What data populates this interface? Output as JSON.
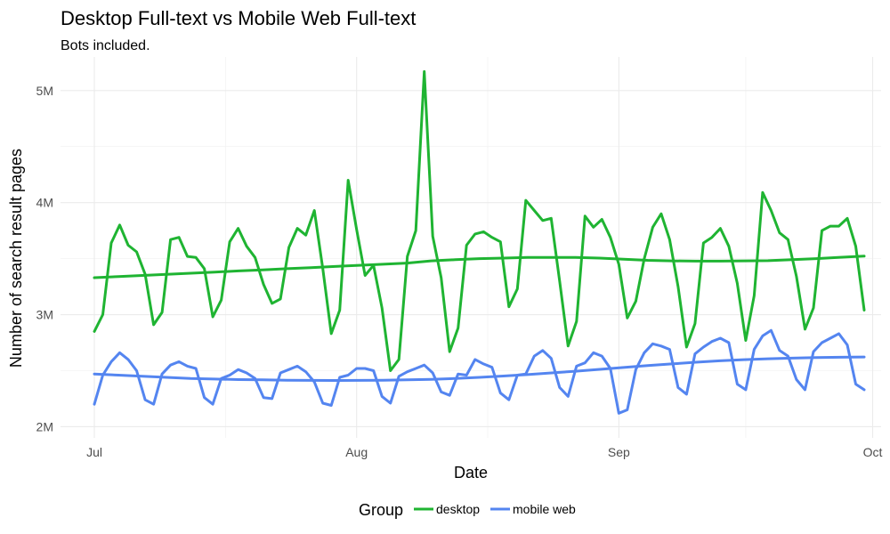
{
  "chart_data": {
    "type": "line",
    "title": "Desktop Full-text vs Mobile Web Full-text",
    "subtitle": "Bots included.",
    "xlabel": "Date",
    "ylabel": "Number of search result pages",
    "x_ticks": [
      {
        "date": "2016-07-01",
        "label": "Jul"
      },
      {
        "date": "2016-08-01",
        "label": "Aug"
      },
      {
        "date": "2016-09-01",
        "label": "Sep"
      },
      {
        "date": "2016-10-01",
        "label": "Oct"
      }
    ],
    "y_ticks": [
      {
        "value": 2000000,
        "label": "2M"
      },
      {
        "value": 3000000,
        "label": "3M"
      },
      {
        "value": 4000000,
        "label": "4M"
      },
      {
        "value": 5000000,
        "label": "5M"
      }
    ],
    "xlim": [
      "2016-06-27",
      "2016-10-02"
    ],
    "ylim": [
      1900000,
      5300000
    ],
    "grid": true,
    "legend": {
      "title": "Group",
      "position": "bottom"
    },
    "series": [
      {
        "name": "desktop",
        "color": "#1fb432",
        "start_date": "2016-07-01",
        "values": [
          2850000,
          3000000,
          3640000,
          3800000,
          3620000,
          3560000,
          3360000,
          2910000,
          3020000,
          3670000,
          3690000,
          3520000,
          3510000,
          3410000,
          2980000,
          3130000,
          3650000,
          3770000,
          3610000,
          3510000,
          3270000,
          3100000,
          3140000,
          3600000,
          3770000,
          3710000,
          3930000,
          3410000,
          2830000,
          3040000,
          4200000,
          3760000,
          3350000,
          3440000,
          3060000,
          2500000,
          2600000,
          3520000,
          3750000,
          5170000,
          3700000,
          3330000,
          2670000,
          2880000,
          3620000,
          3720000,
          3740000,
          3690000,
          3650000,
          3070000,
          3230000,
          4020000,
          3930000,
          3840000,
          3860000,
          3300000,
          2720000,
          2940000,
          3880000,
          3780000,
          3850000,
          3690000,
          3450000,
          2970000,
          3120000,
          3500000,
          3780000,
          3900000,
          3670000,
          3250000,
          2710000,
          2920000,
          3640000,
          3690000,
          3770000,
          3610000,
          3280000,
          2770000,
          3170000,
          4090000,
          3930000,
          3730000,
          3670000,
          3340000,
          2870000,
          3060000,
          3750000,
          3790000,
          3790000,
          3860000,
          3610000,
          3040000
        ],
        "trend": [
          3330000,
          3340000,
          3350000,
          3360000,
          3370000,
          3380000,
          3390000,
          3400000,
          3410000,
          3420000,
          3430000,
          3440000,
          3450000,
          3460000,
          3480000,
          3490000,
          3500000,
          3505000,
          3510000,
          3510000,
          3510000,
          3505000,
          3495000,
          3485000,
          3480000,
          3478000,
          3478000,
          3480000,
          3482000,
          3490000,
          3500000,
          3512000,
          3522000
        ]
      },
      {
        "name": "mobile web",
        "color": "#5485f0",
        "start_date": "2016-07-01",
        "values": [
          2200000,
          2460000,
          2580000,
          2660000,
          2600000,
          2500000,
          2240000,
          2200000,
          2470000,
          2550000,
          2580000,
          2540000,
          2520000,
          2260000,
          2200000,
          2430000,
          2460000,
          2510000,
          2480000,
          2430000,
          2260000,
          2250000,
          2480000,
          2510000,
          2540000,
          2490000,
          2400000,
          2210000,
          2190000,
          2440000,
          2460000,
          2520000,
          2520000,
          2500000,
          2270000,
          2210000,
          2450000,
          2490000,
          2520000,
          2550000,
          2480000,
          2310000,
          2280000,
          2470000,
          2460000,
          2600000,
          2560000,
          2530000,
          2300000,
          2240000,
          2460000,
          2470000,
          2630000,
          2680000,
          2610000,
          2350000,
          2270000,
          2540000,
          2570000,
          2660000,
          2630000,
          2520000,
          2120000,
          2150000,
          2510000,
          2660000,
          2740000,
          2720000,
          2690000,
          2350000,
          2290000,
          2650000,
          2710000,
          2760000,
          2790000,
          2750000,
          2380000,
          2330000,
          2690000,
          2810000,
          2860000,
          2680000,
          2630000,
          2420000,
          2330000,
          2670000,
          2750000,
          2790000,
          2830000,
          2730000,
          2380000,
          2330000
        ],
        "trend": [
          2470000,
          2460000,
          2450000,
          2440000,
          2430000,
          2425000,
          2420000,
          2418000,
          2415000,
          2413000,
          2412000,
          2413000,
          2415000,
          2418000,
          2422000,
          2430000,
          2440000,
          2452000,
          2465000,
          2480000,
          2495000,
          2512000,
          2528000,
          2545000,
          2560000,
          2575000,
          2588000,
          2598000,
          2606000,
          2612000,
          2617000,
          2620000,
          2622000
        ]
      }
    ]
  }
}
